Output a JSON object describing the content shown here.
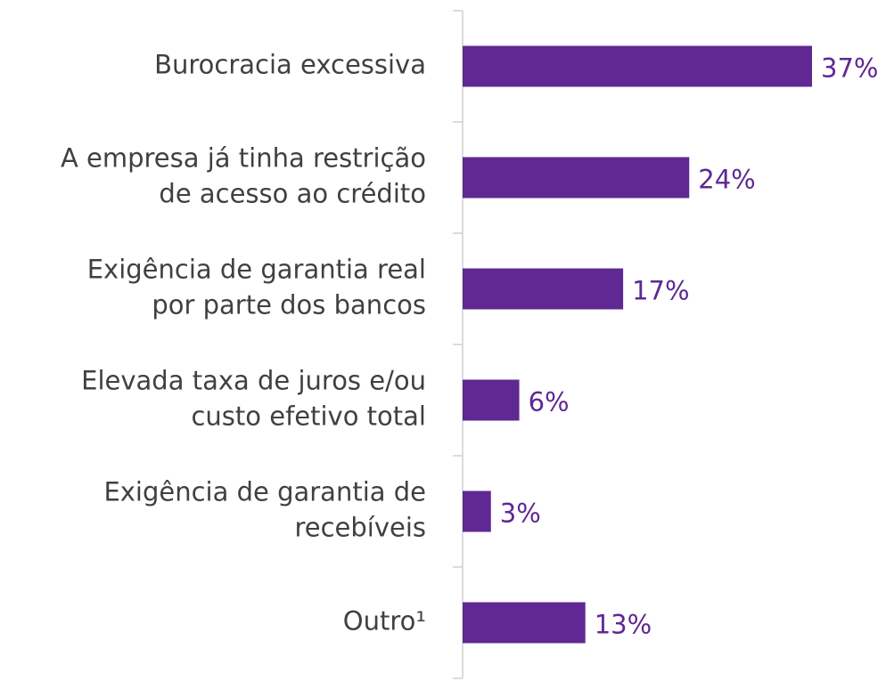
{
  "chart_data": {
    "type": "bar",
    "orientation": "horizontal",
    "categories": [
      [
        "Burocracia excessiva"
      ],
      [
        "A empresa já tinha restrição",
        "de acesso ao crédito"
      ],
      [
        "Exigência de garantia real",
        "por parte dos bancos"
      ],
      [
        "Elevada taxa de juros e/ou",
        "custo efetivo total"
      ],
      [
        "Exigência de garantia de",
        "recebíveis"
      ],
      [
        "Outro¹"
      ]
    ],
    "values": [
      37,
      24,
      17,
      6,
      3,
      13
    ],
    "value_labels": [
      "37%",
      "24%",
      "17%",
      "6%",
      "3%",
      "13%"
    ],
    "color": "#5f2893"
  }
}
